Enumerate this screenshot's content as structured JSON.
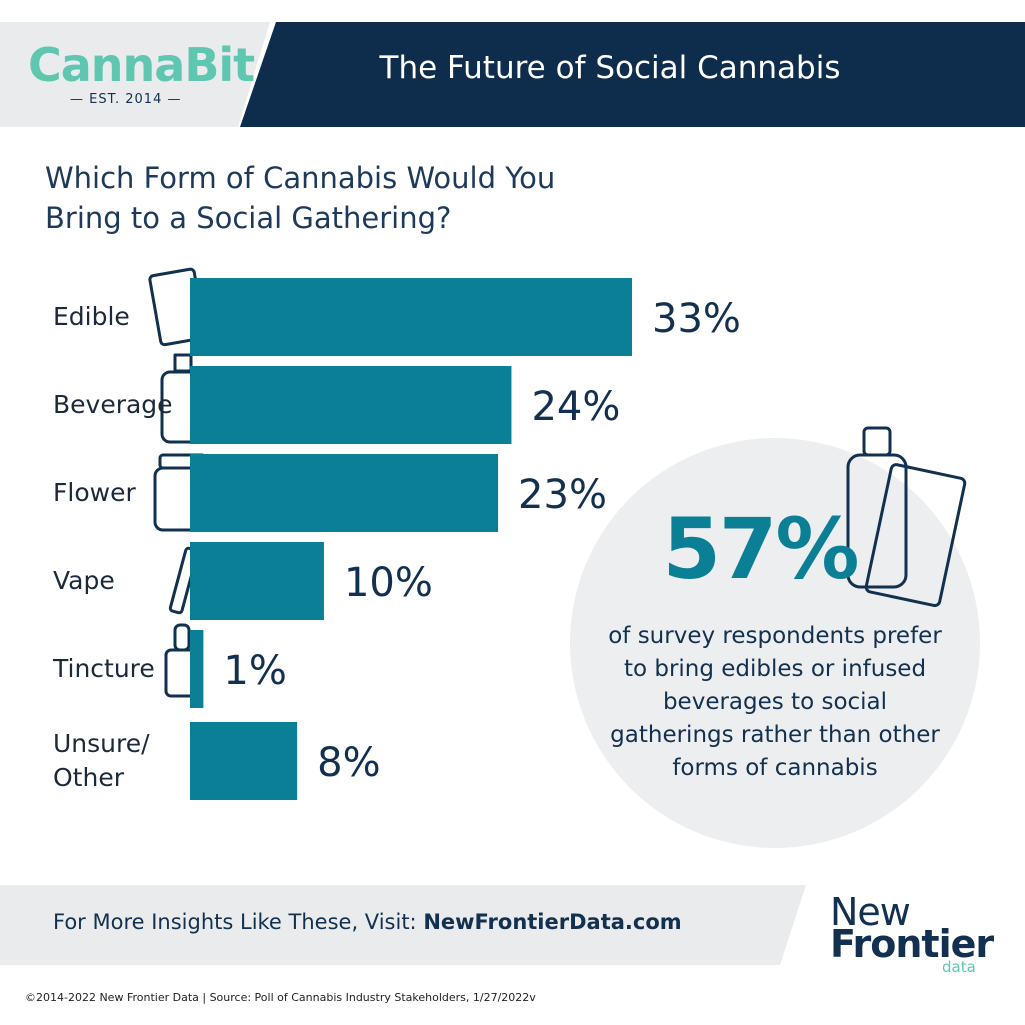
{
  "header": {
    "logo": "CannaBit",
    "logo_tagline": "— EST. 2014 —",
    "title": "The Future of Social Cannabis"
  },
  "chart_data": {
    "type": "bar",
    "orientation": "horizontal",
    "title": "Which Form of Cannabis Would You\nBring to a Social Gathering?",
    "categories": [
      "Edible",
      "Beverage",
      "Flower",
      "Vape",
      "Tincture",
      "Unsure/\nOther"
    ],
    "values": [
      33,
      24,
      23,
      10,
      1,
      8
    ],
    "value_labels": [
      "33%",
      "24%",
      "23%",
      "10%",
      "1%",
      "8%"
    ],
    "color": "#0b7f95"
  },
  "callout": {
    "value": "57%",
    "text": "of survey respondents prefer\nto bring edibles or infused\nbeverages to social\ngatherings rather than other\nforms of cannabis"
  },
  "footer": {
    "prompt": "For More Insights Like These, Visit:",
    "link": "NewFrontierData.com",
    "logo_line1": "New",
    "logo_line2": "Frontier",
    "logo_line3": "data",
    "copyright": "©2014-2022  New Frontier Data | Source: Poll of Cannabis Industry Stakeholders, 1/27/2022v"
  }
}
